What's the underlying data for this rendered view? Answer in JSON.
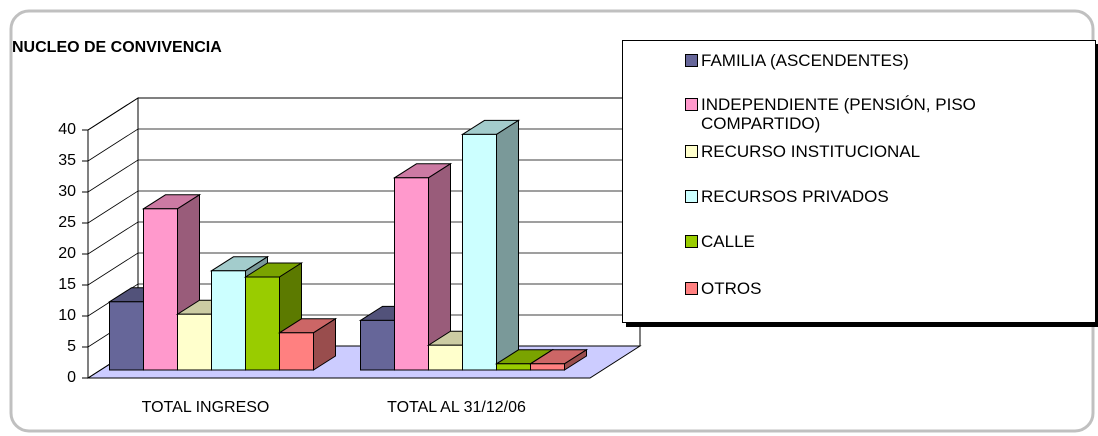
{
  "chart_data": {
    "type": "bar3d",
    "title": "NUCLEO DE CONVIVENCIA",
    "categories": [
      "TOTAL INGRESO",
      "TOTAL AL 31/12/06"
    ],
    "series": [
      {
        "name": "FAMILIA (ASCENDENTES)",
        "color": "#666699",
        "values": [
          11,
          8
        ]
      },
      {
        "name": "INDEPENDIENTE (PENSIÓN, PISO COMPARTIDO)",
        "color": "#ff99cc",
        "values": [
          26,
          31
        ]
      },
      {
        "name": "RECURSO INSTITUCIONAL",
        "color": "#ffffcc",
        "values": [
          9,
          4
        ]
      },
      {
        "name": "RECURSOS PRIVADOS",
        "color": "#ccffff",
        "values": [
          16,
          38
        ]
      },
      {
        "name": "CALLE",
        "color": "#99cc00",
        "values": [
          15,
          1
        ]
      },
      {
        "name": "OTROS",
        "color": "#ff8080",
        "values": [
          6,
          1
        ]
      }
    ],
    "ylim": [
      0,
      40
    ],
    "yticks": [
      0,
      5,
      10,
      15,
      20,
      25,
      30,
      35,
      40
    ],
    "grid": true,
    "legend": "right"
  }
}
